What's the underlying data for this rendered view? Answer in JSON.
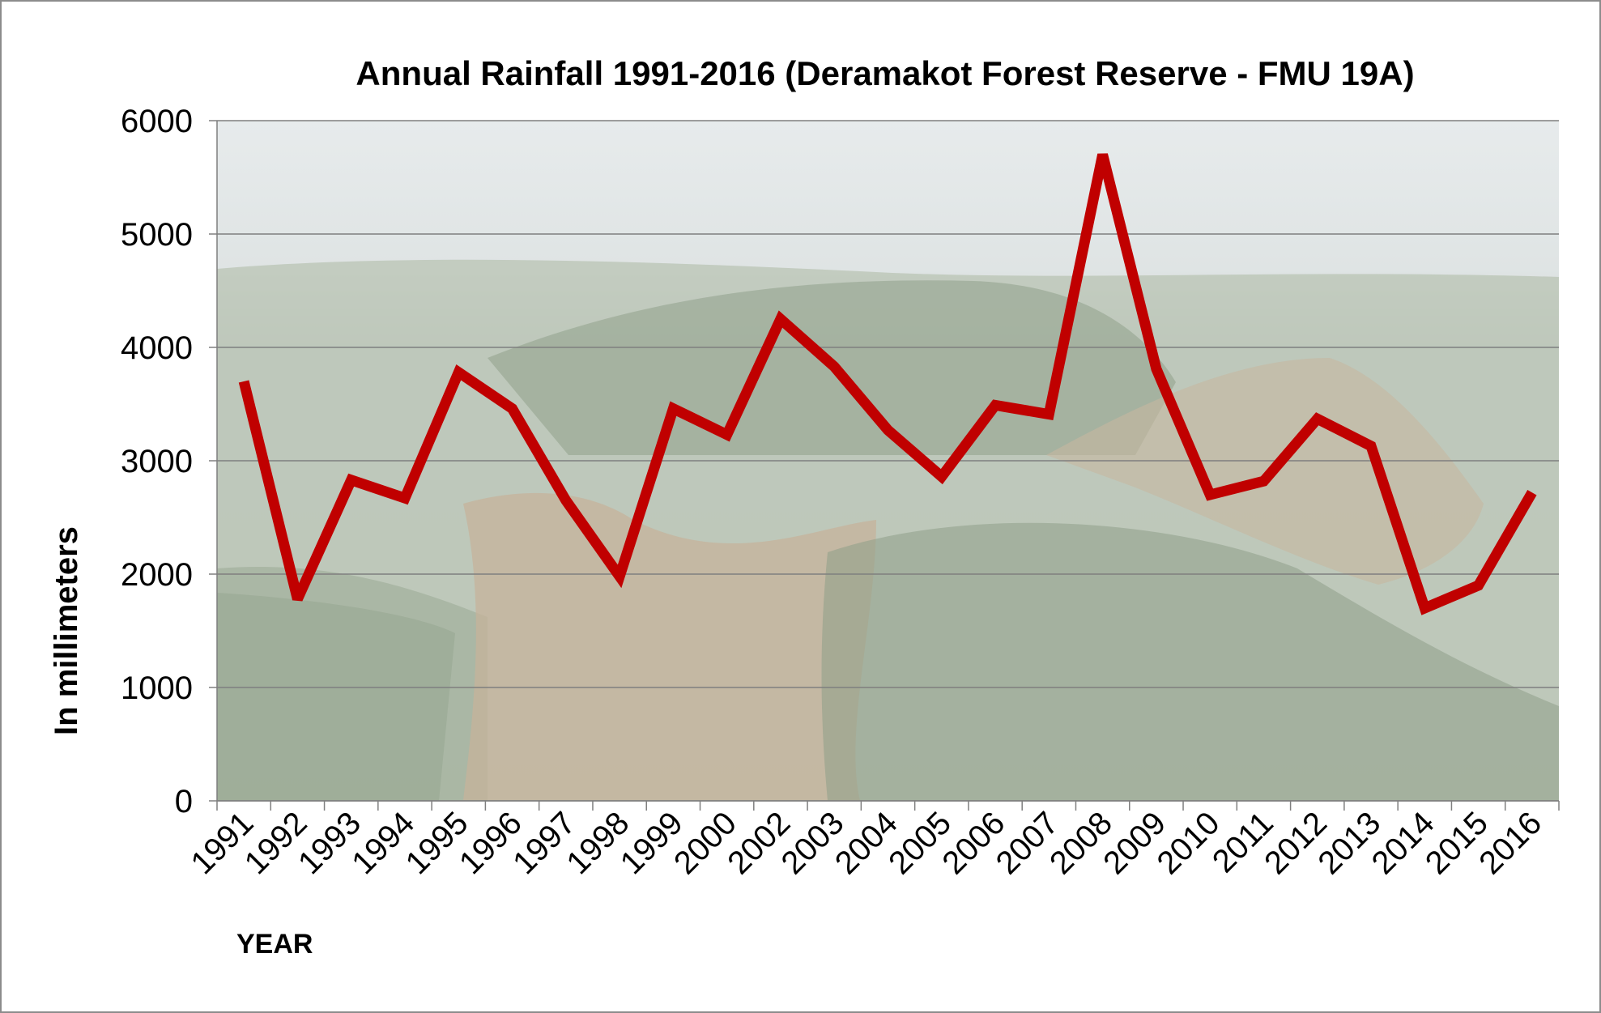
{
  "chart_data": {
    "type": "line",
    "title": "Annual Rainfall 1991-2016 (Deramakot Forest Reserve - FMU 19A)",
    "xlabel": "YEAR",
    "ylabel": "In millimeters",
    "ylim": [
      0,
      6000
    ],
    "yticks": [
      "0",
      "1000",
      "2000",
      "3000",
      "4000",
      "5000",
      "6000"
    ],
    "grid": true,
    "legend": "none",
    "background": "aerial photograph of flooded river valley with forest",
    "categories": [
      "1991",
      "1992",
      "1993",
      "1994",
      "1995",
      "1996",
      "1997",
      "1998",
      "1999",
      "2000",
      "2002",
      "2003",
      "2004",
      "2005",
      "2006",
      "2007",
      "2008",
      "2009",
      "2010",
      "2011",
      "2012",
      "2013",
      "2014",
      "2015",
      "2016"
    ],
    "series": [
      {
        "values": [
          3700,
          1780,
          2830,
          2670,
          3780,
          3460,
          2650,
          1980,
          3460,
          3230,
          4250,
          3830,
          3270,
          2860,
          3490,
          3410,
          5700,
          3810,
          2700,
          2820,
          3370,
          3130,
          1700,
          1900,
          2720
        ],
        "color": "#c00000"
      }
    ]
  }
}
